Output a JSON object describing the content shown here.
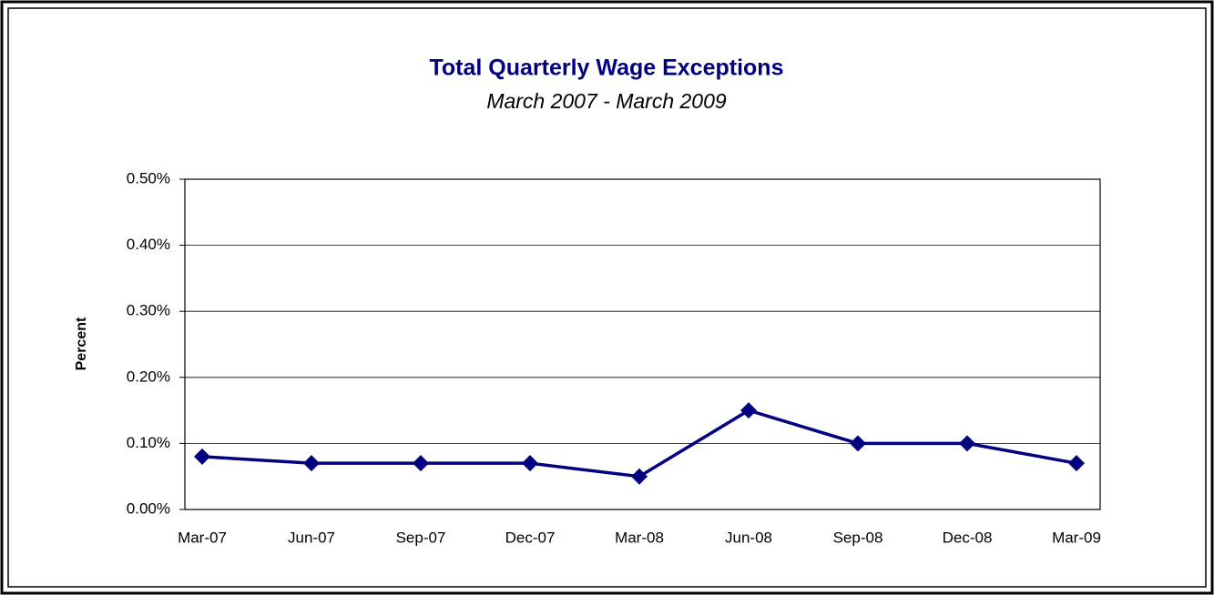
{
  "chart_data": {
    "type": "line",
    "title": "Total Quarterly Wage Exceptions",
    "subtitle": "March 2007 - March 2009",
    "y_label": "Percent",
    "categories": [
      "Mar-07",
      "Jun-07",
      "Sep-07",
      "Dec-07",
      "Mar-08",
      "Jun-08",
      "Sep-08",
      "Dec-08",
      "Mar-09"
    ],
    "values": [
      0.08,
      0.07,
      0.07,
      0.07,
      0.05,
      0.15,
      0.1,
      0.1,
      0.07
    ],
    "color": "#000080",
    "ylim": [
      0,
      0.5
    ],
    "yticks": [
      {
        "value": 0,
        "label": "0.00%"
      },
      {
        "value": 0.1,
        "label": "0.10%"
      },
      {
        "value": 0.2,
        "label": "0.20%"
      },
      {
        "value": 0.3,
        "label": "0.30%"
      },
      {
        "value": 0.4,
        "label": "0.40%"
      },
      {
        "value": 0.5,
        "label": "0.50%"
      }
    ],
    "grid": true
  }
}
